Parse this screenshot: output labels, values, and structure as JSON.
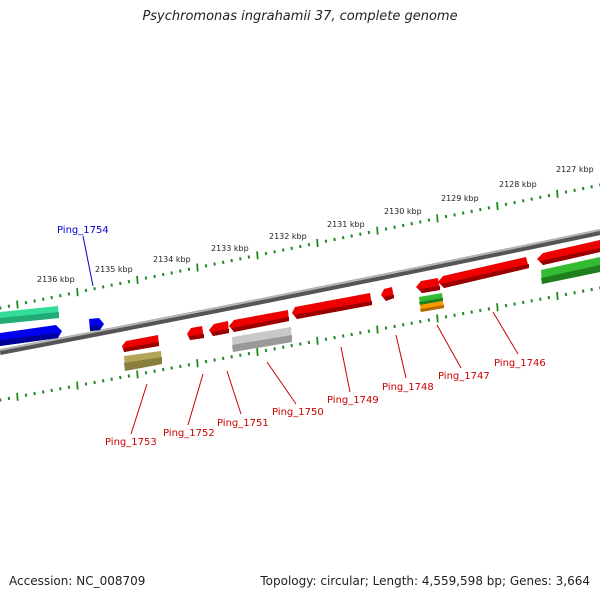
{
  "title": "Psychromonas ingrahamii 37, complete genome",
  "accession": "Accession: NC_008709",
  "summary": "Topology: circular; Length: 4,559,598 bp; Genes: 3,664",
  "colors": {
    "backbone": "#808080",
    "tick_outer": "#1f8a1f",
    "tick_inner": "#1f8a1f",
    "label_red": "#cc0000",
    "label_blue": "#0000cc"
  },
  "kbp_labels": [
    "2136 kbp",
    "2135 kbp",
    "2134 kbp",
    "2133 kbp",
    "2132 kbp",
    "2131 kbp",
    "2130 kbp",
    "2129 kbp",
    "2128 kbp",
    "2127 kbp"
  ],
  "gene_labels": [
    {
      "text": "Ping_1754",
      "color": "#0000cc"
    },
    {
      "text": "Ping_1753",
      "color": "#cc0000"
    },
    {
      "text": "Ping_1752",
      "color": "#cc0000"
    },
    {
      "text": "Ping_1751",
      "color": "#cc0000"
    },
    {
      "text": "Ping_1750",
      "color": "#cc0000"
    },
    {
      "text": "Ping_1749",
      "color": "#cc0000"
    },
    {
      "text": "Ping_1748",
      "color": "#cc0000"
    },
    {
      "text": "Ping_1747",
      "color": "#cc0000"
    },
    {
      "text": "Ping_1746",
      "color": "#cc0000"
    }
  ],
  "features": [
    {
      "name": "outer-teal-feature",
      "color": "#33dd99"
    },
    {
      "name": "outer-blue-feature",
      "color": "#0000ee"
    },
    {
      "name": "ping-1754-feature",
      "color": "#0000ee"
    },
    {
      "name": "ping-1753-feature",
      "color": "#ee0000"
    },
    {
      "name": "ping-1753-domain",
      "color": "#b3a55a"
    },
    {
      "name": "ping-1752-feature",
      "color": "#ee0000"
    },
    {
      "name": "ping-1751-feature",
      "color": "#ee0000"
    },
    {
      "name": "ping-1750-feature",
      "color": "#ee0000"
    },
    {
      "name": "ping-1750-domain",
      "color": "#c0c0c0"
    },
    {
      "name": "ping-1749-feature",
      "color": "#ee0000"
    },
    {
      "name": "ping-1748-feature",
      "color": "#ee0000"
    },
    {
      "name": "ping-1747-feature",
      "color": "#ee0000"
    },
    {
      "name": "ping-1747-domain-green",
      "color": "#33bb33"
    },
    {
      "name": "ping-1747-domain-orange",
      "color": "#ff9900"
    },
    {
      "name": "ping-1746-feature",
      "color": "#ee0000"
    },
    {
      "name": "right-red-feature",
      "color": "#ee0000"
    },
    {
      "name": "right-green-feature",
      "color": "#33bb33"
    }
  ]
}
